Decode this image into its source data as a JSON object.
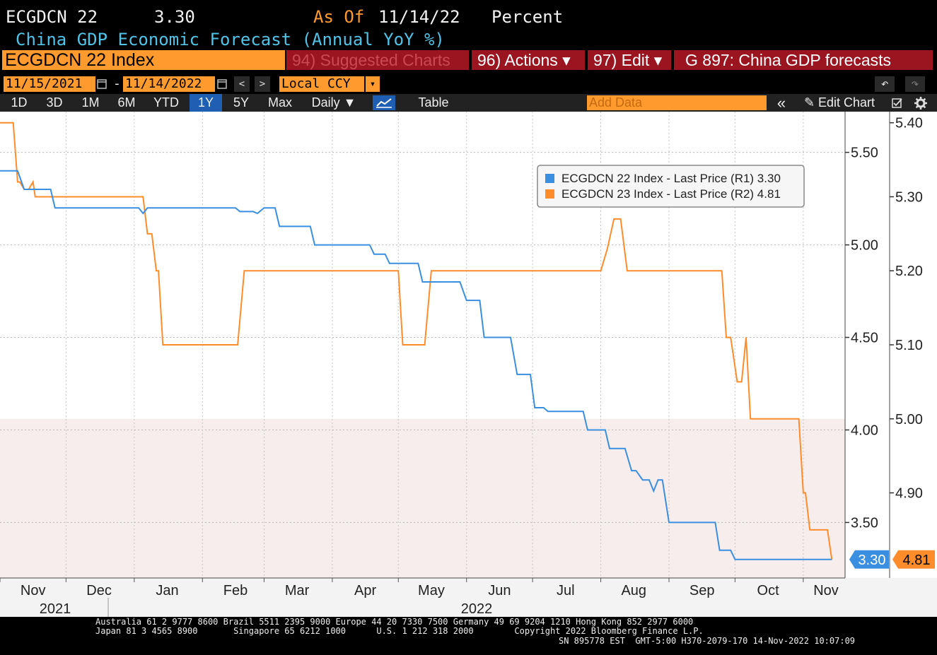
{
  "header": {
    "ticker": "ECGDCN 22",
    "last_value": "3.30",
    "as_of_label": "As Of",
    "as_of_date": "11/14/22",
    "unit": "Percent",
    "description": "China GDP Economic Forecast (Annual YoY %)"
  },
  "toolbar": {
    "security": "ECGDCN 22 Index",
    "suggested": "94) Suggested Charts",
    "actions": "96) Actions ▾",
    "edit": "97) Edit ▾",
    "page_title": "G 897: China GDP forecasts"
  },
  "dates": {
    "start": "11/15/2021",
    "end": "11/14/2022",
    "dash": "-",
    "currency": "Local CCY",
    "prev": "<",
    "next": ">",
    "caret": "▾",
    "undo": "↶",
    "redo": "↷"
  },
  "ranges": {
    "items": [
      "1D",
      "3D",
      "1M",
      "6M",
      "YTD",
      "1Y",
      "5Y",
      "Max"
    ],
    "selected": "1Y",
    "period": "Daily ▼",
    "table": "Table",
    "add_data": "Add Data",
    "collapse": "«",
    "edit_chart": "✎ Edit Chart"
  },
  "colors": {
    "series1": "#3b8fe0",
    "series2": "#ff8c2a",
    "accent": "#ff9a2e",
    "red_button": "#9a1520"
  },
  "chart_data": {
    "type": "line",
    "x_axis": {
      "range": [
        "2021-11-01",
        "2022-11-20"
      ],
      "months": [
        "Nov",
        "Dec",
        "Jan",
        "Feb",
        "Mar",
        "Apr",
        "May",
        "Jun",
        "Jul",
        "Aug",
        "Sep",
        "Oct",
        "Nov"
      ],
      "years": [
        "2021",
        "2022"
      ]
    },
    "axis_r1": {
      "ylim": [
        3.2,
        5.72
      ],
      "ticks": [
        "3.50",
        "4.00",
        "4.50",
        "5.00",
        "5.50"
      ]
    },
    "axis_r2": {
      "ylim": [
        4.785,
        5.415
      ],
      "ticks": [
        "4.90",
        "5.00",
        "5.10",
        "5.20",
        "5.30",
        "5.40"
      ]
    },
    "legend_position": "top-right",
    "series": [
      {
        "name": "ECGDCN 22 Index - Last Price (R1)",
        "last": "3.30",
        "axis": "R1",
        "points": [
          [
            "2021-11-01",
            5.4
          ],
          [
            "2021-11-09",
            5.4
          ],
          [
            "2021-11-12",
            5.3
          ],
          [
            "2021-11-24",
            5.3
          ],
          [
            "2021-11-26",
            5.2
          ],
          [
            "2022-01-03",
            5.2
          ],
          [
            "2022-01-05",
            5.17
          ],
          [
            "2022-01-07",
            5.2
          ],
          [
            "2022-02-16",
            5.2
          ],
          [
            "2022-02-18",
            5.18
          ],
          [
            "2022-02-24",
            5.18
          ],
          [
            "2022-02-26",
            5.17
          ],
          [
            "2022-03-01",
            5.2
          ],
          [
            "2022-03-06",
            5.2
          ],
          [
            "2022-03-08",
            5.1
          ],
          [
            "2022-03-22",
            5.1
          ],
          [
            "2022-03-24",
            5.0
          ],
          [
            "2022-04-18",
            5.0
          ],
          [
            "2022-04-20",
            4.95
          ],
          [
            "2022-04-25",
            4.95
          ],
          [
            "2022-04-27",
            4.9
          ],
          [
            "2022-05-10",
            4.9
          ],
          [
            "2022-05-12",
            4.8
          ],
          [
            "2022-05-29",
            4.8
          ],
          [
            "2022-06-01",
            4.7
          ],
          [
            "2022-06-07",
            4.7
          ],
          [
            "2022-06-09",
            4.5
          ],
          [
            "2022-06-21",
            4.5
          ],
          [
            "2022-06-24",
            4.3
          ],
          [
            "2022-06-30",
            4.3
          ],
          [
            "2022-07-02",
            4.12
          ],
          [
            "2022-07-06",
            4.12
          ],
          [
            "2022-07-08",
            4.1
          ],
          [
            "2022-07-24",
            4.1
          ],
          [
            "2022-07-26",
            4.0
          ],
          [
            "2022-08-03",
            4.0
          ],
          [
            "2022-08-05",
            3.9
          ],
          [
            "2022-08-12",
            3.9
          ],
          [
            "2022-08-15",
            3.78
          ],
          [
            "2022-08-17",
            3.78
          ],
          [
            "2022-08-20",
            3.73
          ],
          [
            "2022-08-23",
            3.73
          ],
          [
            "2022-08-25",
            3.67
          ],
          [
            "2022-08-27",
            3.73
          ],
          [
            "2022-08-29",
            3.73
          ],
          [
            "2022-09-01",
            3.5
          ],
          [
            "2022-09-22",
            3.5
          ],
          [
            "2022-09-24",
            3.35
          ],
          [
            "2022-09-29",
            3.35
          ],
          [
            "2022-10-01",
            3.3
          ],
          [
            "2022-11-14",
            3.3
          ]
        ]
      },
      {
        "name": "ECGDCN 23 Index - Last Price (R2)",
        "last": "4.81",
        "axis": "R2",
        "points": [
          [
            "2021-11-01",
            5.4
          ],
          [
            "2021-11-07",
            5.4
          ],
          [
            "2021-11-09",
            5.32
          ],
          [
            "2021-11-10",
            5.32
          ],
          [
            "2021-11-12",
            5.31
          ],
          [
            "2021-11-14",
            5.31
          ],
          [
            "2021-11-16",
            5.32
          ],
          [
            "2021-11-17",
            5.3
          ],
          [
            "2022-01-05",
            5.3
          ],
          [
            "2022-01-07",
            5.25
          ],
          [
            "2022-01-09",
            5.25
          ],
          [
            "2022-01-11",
            5.2
          ],
          [
            "2022-01-12",
            5.2
          ],
          [
            "2022-01-14",
            5.1
          ],
          [
            "2022-02-17",
            5.1
          ],
          [
            "2022-02-20",
            5.2
          ],
          [
            "2022-05-01",
            5.2
          ],
          [
            "2022-05-03",
            5.1
          ],
          [
            "2022-05-13",
            5.1
          ],
          [
            "2022-05-16",
            5.2
          ],
          [
            "2022-08-01",
            5.2
          ],
          [
            "2022-08-04",
            5.23
          ],
          [
            "2022-08-07",
            5.27
          ],
          [
            "2022-08-10",
            5.27
          ],
          [
            "2022-08-13",
            5.2
          ],
          [
            "2022-09-25",
            5.2
          ],
          [
            "2022-09-27",
            5.11
          ],
          [
            "2022-09-29",
            5.11
          ],
          [
            "2022-10-02",
            5.05
          ],
          [
            "2022-10-04",
            5.05
          ],
          [
            "2022-10-06",
            5.11
          ],
          [
            "2022-10-08",
            5.0
          ],
          [
            "2022-10-30",
            5.0
          ],
          [
            "2022-11-01",
            4.9
          ],
          [
            "2022-11-02",
            4.9
          ],
          [
            "2022-11-04",
            4.85
          ],
          [
            "2022-11-12",
            4.85
          ],
          [
            "2022-11-14",
            4.81
          ]
        ]
      }
    ]
  },
  "footer": {
    "line1": "Australia 61 2 9777 8600 Brazil 5511 2395 9000 Europe 44 20 7330 7500 Germany 49 69 9204 1210 Hong Kong 852 2977 6000",
    "line2": "Japan 81 3 4565 8900       Singapore 65 6212 1000      U.S. 1 212 318 2000        Copyright 2022 Bloomberg Finance L.P.",
    "line3": "SN 895778 EST  GMT-5:00 H370-2079-170 14-Nov-2022 10:07:09"
  }
}
